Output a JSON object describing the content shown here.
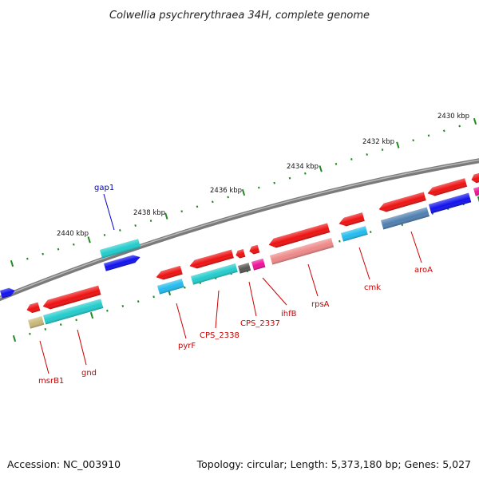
{
  "title": "Colwellia psychrerythraea 34H, complete genome",
  "footer": {
    "accession": "Accession: NC_003910",
    "summary": "Topology: circular; Length: 5,373,180 bp; Genes: 5,027"
  },
  "scale_labels": [
    "2430 kbp",
    "2432 kbp",
    "2434 kbp",
    "2436 kbp",
    "2438 kbp",
    "2440 kbp"
  ],
  "gene_labels": [
    {
      "name": "gap1",
      "strand": "forward",
      "color": "#0000cc"
    },
    {
      "name": "msrB1",
      "strand": "reverse",
      "color": "#cc0000"
    },
    {
      "name": "gnd",
      "strand": "reverse",
      "color": "#cc0000"
    },
    {
      "name": "pyrF",
      "strand": "reverse",
      "color": "#cc0000"
    },
    {
      "name": "CPS_2338",
      "strand": "reverse",
      "color": "#cc0000"
    },
    {
      "name": "CPS_2337",
      "strand": "reverse",
      "color": "#cc0000"
    },
    {
      "name": "ihfB",
      "strand": "reverse",
      "color": "#cc0000"
    },
    {
      "name": "rpsA",
      "strand": "reverse",
      "color": "#cc0000"
    },
    {
      "name": "cmk",
      "strand": "reverse",
      "color": "#cc0000"
    },
    {
      "name": "aroA",
      "strand": "reverse",
      "color": "#cc0000"
    }
  ],
  "colors": {
    "backbone": "#808080",
    "gene_red": "#ee1111",
    "gene_teal": "#22cccc",
    "gene_blue": "#1111ee",
    "gene_lightblue": "#22bbee",
    "gene_salmon": "#ee8888",
    "gene_olive": "#c8b878",
    "gene_steel": "#4f7fb0",
    "gene_gray": "#555555",
    "gene_magenta": "#ee1199",
    "tick_green": "#228822"
  }
}
